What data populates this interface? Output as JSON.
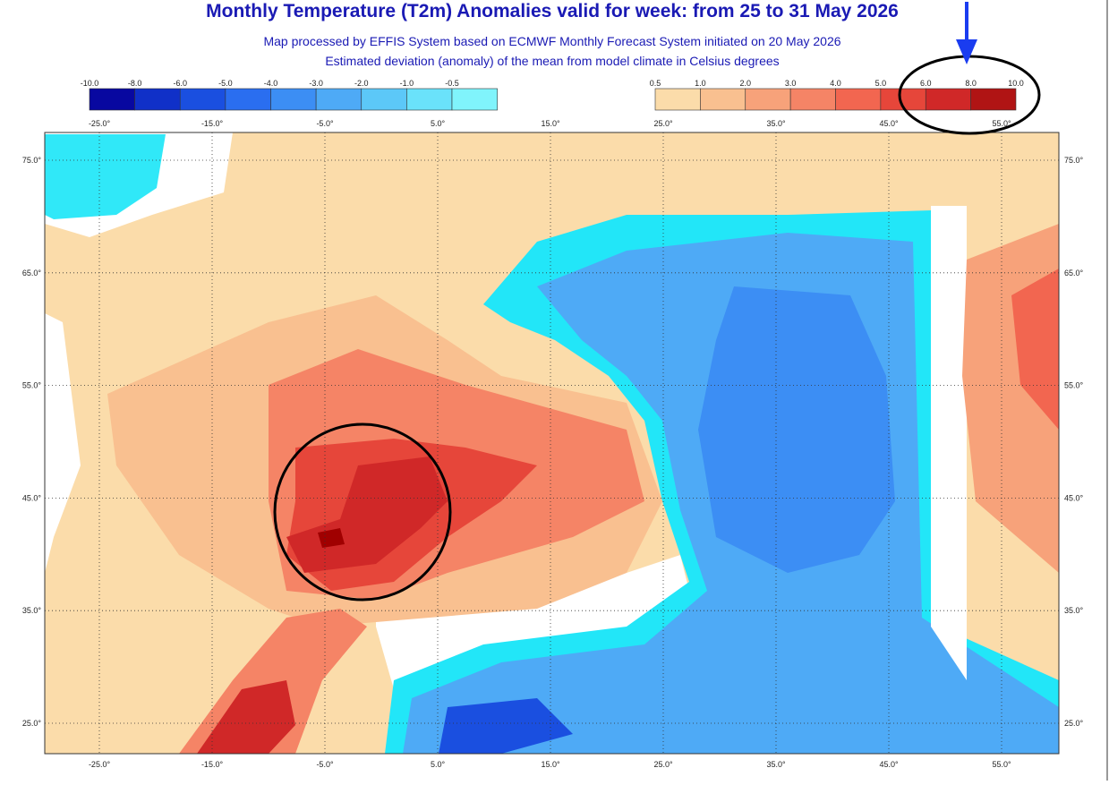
{
  "header": {
    "title": "Monthly Temperature (T2m) Anomalies valid for week: from 25 to 31 May 2026",
    "subtitle_1": "Map processed by EFFIS System based on ECMWF Monthly Forecast System initiated on 20 May 2026",
    "subtitle_2": "Estimated deviation (anomaly) of the mean from model climate in Celsius degrees"
  },
  "legend": {
    "negative": {
      "labels": [
        "-10.0",
        "-8.0",
        "-6.0",
        "-5.0",
        "-4.0",
        "-3.0",
        "-2.0",
        "-1.0",
        "-0.5"
      ],
      "colors": [
        "#0808a0",
        "#1030c8",
        "#1a4fe0",
        "#2a6ef0",
        "#3c8ef4",
        "#4eaaf6",
        "#5cc8f8",
        "#6ae2fa",
        "#80f4fc"
      ]
    },
    "positive": {
      "labels": [
        "0.5",
        "1.0",
        "2.0",
        "3.0",
        "4.0",
        "5.0",
        "6.0",
        "8.0",
        "10.0"
      ],
      "colors": [
        "#fbdcaa",
        "#f9c090",
        "#f7a27a",
        "#f58466",
        "#f26650",
        "#e6463a",
        "#d02828",
        "#b01414"
      ]
    }
  },
  "map": {
    "lon_labels": [
      "-25.0°",
      "-15.0°",
      "-5.0°",
      "5.0°",
      "15.0°",
      "25.0°",
      "35.0°",
      "45.0°",
      "55.0°"
    ],
    "lat_labels": [
      "75.0°",
      "65.0°",
      "55.0°",
      "45.0°",
      "35.0°",
      "25.0°"
    ]
  }
}
